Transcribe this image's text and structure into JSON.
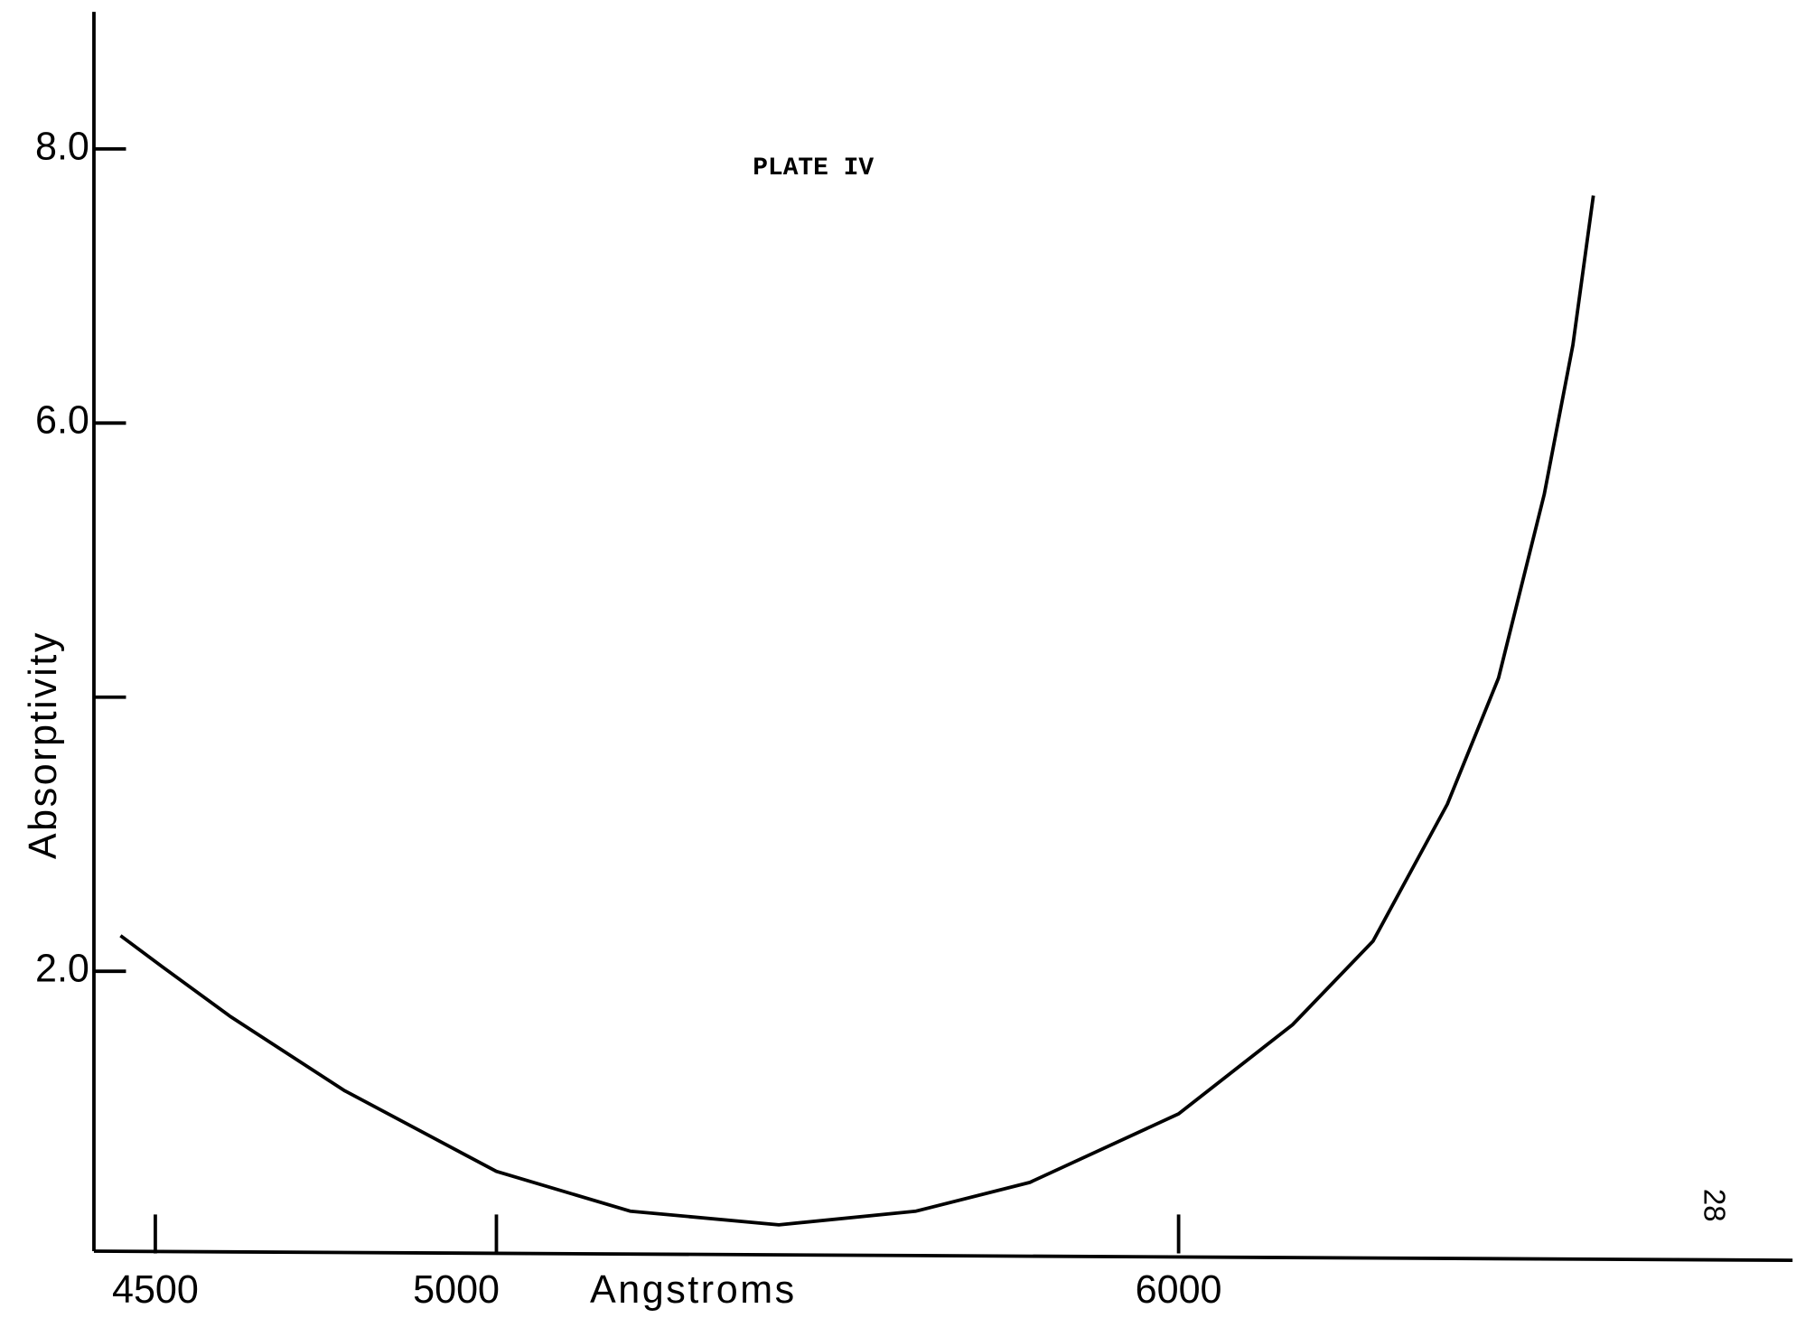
{
  "chart_data": {
    "type": "line",
    "title": "PLATE IV",
    "page_number": "28",
    "x_label": "Angstroms",
    "y_label": "Absorptivity",
    "x": [
      4449,
      4511,
      4610,
      4777,
      5000,
      5196,
      5414,
      5615,
      5782,
      6000,
      6167,
      6285,
      6394,
      6469,
      6536,
      6578,
      6608
    ],
    "series": [
      {
        "name": "Absorptivity",
        "color": "#000000",
        "values": [
          2.26,
          2.03,
          1.67,
          1.13,
          0.54,
          0.25,
          0.15,
          0.25,
          0.46,
          0.96,
          1.61,
          2.22,
          3.22,
          4.14,
          5.48,
          6.57,
          7.66
        ]
      }
    ],
    "xlim": [
      4410,
      6900
    ],
    "xticks": [
      4500,
      5000,
      6000
    ],
    "ylim": [
      0,
      9
    ],
    "yticks": [
      {
        "value": 2,
        "label": "2.0"
      },
      {
        "value": 4,
        "label": null
      },
      {
        "value": 6,
        "label": "6.0"
      },
      {
        "value": 8,
        "label": "8.0"
      }
    ],
    "grid": false
  }
}
